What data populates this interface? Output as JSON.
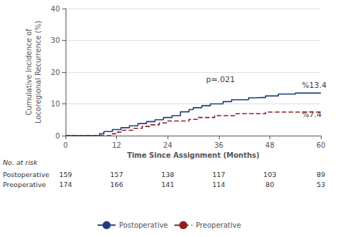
{
  "chart_data": {
    "type": "step",
    "xlabel": "Time Since Assignment (Months)",
    "ylabel": "Cumulative Incidence of\nLocoregional Recurrence (%)",
    "xlim": [
      0,
      60
    ],
    "ylim": [
      0,
      40
    ],
    "xticks": [
      0,
      12,
      24,
      36,
      48,
      60
    ],
    "yticks": [
      0,
      10,
      20,
      30,
      40
    ],
    "grid": true,
    "legend": "bottom",
    "series": [
      {
        "name": "Postoperative",
        "color": "#1f3d7a",
        "line_style": "solid",
        "x": [
          0,
          7,
          8,
          9,
          10,
          11,
          12,
          13,
          14,
          15,
          16,
          17,
          18,
          19,
          20,
          21,
          22,
          23,
          24,
          25,
          26,
          27,
          28,
          29,
          30,
          31,
          32,
          33,
          34,
          35,
          36,
          37,
          38,
          39,
          40,
          41,
          42,
          43,
          44,
          45,
          46,
          47,
          48,
          49,
          50,
          51,
          52,
          53,
          54,
          55,
          60
        ],
        "values": [
          0,
          0,
          0.6,
          1.3,
          1.3,
          1.9,
          1.9,
          2.5,
          2.5,
          3.1,
          3.1,
          3.8,
          3.8,
          4.4,
          4.4,
          5.0,
          5.0,
          5.7,
          5.7,
          6.3,
          6.3,
          7.5,
          7.5,
          8.2,
          8.8,
          8.8,
          9.4,
          9.4,
          10.0,
          10.0,
          10.0,
          10.7,
          10.7,
          11.3,
          11.3,
          11.3,
          11.3,
          11.9,
          11.9,
          12.0,
          12.0,
          12.5,
          12.5,
          12.5,
          13.1,
          13.1,
          13.1,
          13.1,
          13.4,
          13.4,
          13.4
        ]
      },
      {
        "name": "Preoperative",
        "color": "#8b2020",
        "line_style": "dashed",
        "x": [
          0,
          10,
          11,
          12,
          13,
          14,
          16,
          18,
          20,
          22,
          24,
          29,
          31,
          33,
          35,
          40,
          45,
          47,
          60
        ],
        "values": [
          0,
          0,
          0.6,
          1.1,
          1.7,
          1.7,
          2.3,
          2.9,
          3.4,
          4.0,
          4.6,
          5.1,
          5.7,
          5.7,
          6.3,
          6.9,
          6.9,
          7.4,
          7.4
        ]
      }
    ],
    "annotations": [
      {
        "text": "p=.021",
        "x": 33,
        "y": 16.5
      },
      {
        "text": "%13.4",
        "x": 55.5,
        "y": 14.5
      },
      {
        "text": "%7.4",
        "x": 55.5,
        "y": 5.5
      }
    ],
    "at_risk": {
      "label": "No. at risk",
      "x": [
        0,
        12,
        24,
        36,
        48,
        60
      ],
      "rows": [
        {
          "name": "Postoperative",
          "values": [
            159,
            157,
            138,
            117,
            103,
            89
          ]
        },
        {
          "name": "Preoperative",
          "values": [
            174,
            166,
            141,
            114,
            80,
            53
          ]
        }
      ]
    }
  }
}
